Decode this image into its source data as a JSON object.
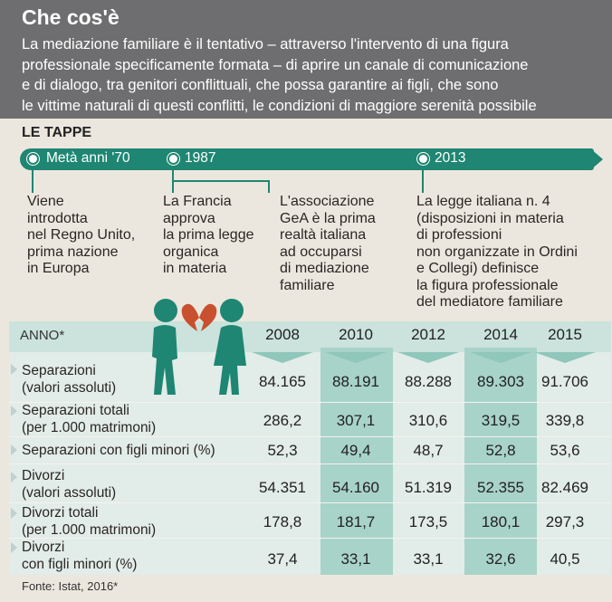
{
  "header": {
    "title": "Che cos'è",
    "lines": [
      "La mediazione familiare è il tentativo – attraverso l'intervento di una figura",
      "professionale specificamente formata – di aprire un canale di comunicazione",
      "e di dialogo, tra genitori conflittuali, che possa garantire ai figli, che sono",
      "le vittime naturali di questi conflitti, le condizioni di maggiore serenità possibile"
    ]
  },
  "timeline": {
    "label": "LE TAPPE",
    "years": [
      "Metà anni '70",
      "1987",
      "2013"
    ],
    "events": [
      [
        "Viene",
        "introdotta",
        "nel Regno Unito,",
        "prima nazione",
        "in Europa"
      ],
      [
        "La Francia",
        "approva",
        "la prima legge",
        "organica",
        "in materia"
      ],
      [
        "L'associazione",
        "GeA è la prima",
        "realtà italiana",
        "ad occuparsi",
        "di mediazione",
        "familiare"
      ],
      [
        "La legge italiana n. 4",
        "(disposizioni in materia",
        "di professioni",
        "non organizzate in Ordini",
        "e Collegi) definisce",
        "la figura professionale",
        "del mediatore familiare"
      ]
    ]
  },
  "illustration": {
    "icon": "couple-broken-heart-icon",
    "accent": "#1e8672",
    "heart": "#c9502f"
  },
  "table": {
    "corner": "ANNO*",
    "years": [
      "2008",
      "2010",
      "2012",
      "2014",
      "2015"
    ],
    "rows": [
      {
        "label": [
          "Separazioni",
          "(valori assoluti)"
        ],
        "values": [
          "84.165",
          "88.191",
          "88.288",
          "89.303",
          "91.706"
        ]
      },
      {
        "label": [
          "Separazioni totali",
          "(per 1.000 matrimoni)"
        ],
        "values": [
          "286,2",
          "307,1",
          "310,6",
          "319,5",
          "339,8"
        ]
      },
      {
        "label": [
          "Separazioni con figli minori (%)"
        ],
        "values": [
          "52,3",
          "49,4",
          "48,7",
          "52,8",
          "53,6"
        ]
      },
      {
        "label": [
          "Divorzi",
          "(valori assoluti)"
        ],
        "values": [
          "54.351",
          "54.160",
          "51.319",
          "52.355",
          "82.469"
        ]
      },
      {
        "label": [
          "Divorzi totali",
          "(per 1.000 matrimoni)"
        ],
        "values": [
          "178,8",
          "181,7",
          "173,5",
          "180,1",
          "297,3"
        ]
      },
      {
        "label": [
          "Divorzi",
          "con figli minori (%)"
        ],
        "values": [
          "37,4",
          "33,1",
          "33,1",
          "32,6",
          "40,5"
        ]
      }
    ]
  },
  "source": "Fonte: Istat, 2016*"
}
